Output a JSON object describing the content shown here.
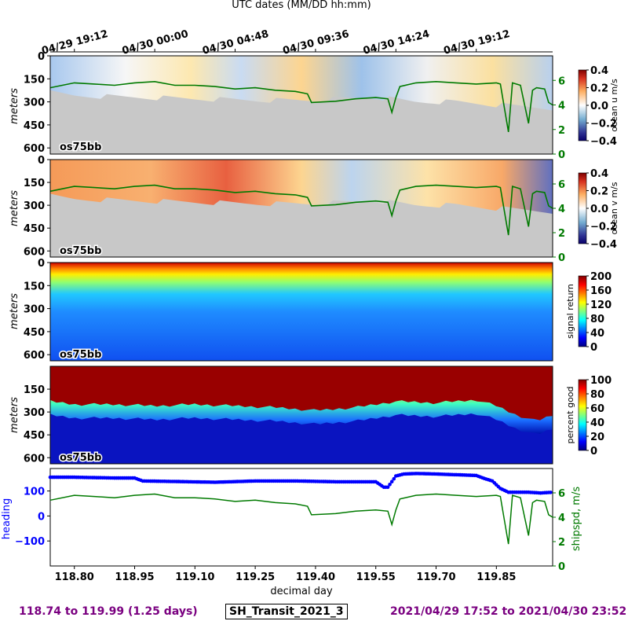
{
  "top_axis_label": "UTC dates (MM/DD hh:mm)",
  "top_ticks": [
    {
      "day": 118.8,
      "label": "04/29 19:12"
    },
    {
      "day": 119.0,
      "label": "04/30 00:00"
    },
    {
      "day": 119.2,
      "label": "04/30 04:48"
    },
    {
      "day": 119.4,
      "label": "04/30 09:36"
    },
    {
      "day": 119.6,
      "label": "04/30 14:24"
    },
    {
      "day": 119.8,
      "label": "04/30 19:12"
    }
  ],
  "footer": {
    "left": "118.74 to 119.99 (1.25 days)",
    "center": "SH_Transit_2021_3",
    "right": "2021/04/29 17:52 to 2021/04/30 23:52"
  },
  "colors": {
    "shipspd": "#007a00",
    "heading": "#0000ff",
    "bad": "#c8c8c8",
    "footer": "#7a0080"
  },
  "chart_data": [
    {
      "type": "heatmap",
      "panel": "ocean_u",
      "instrument": "os75bb",
      "ylabel": "meters",
      "ytick_labels": [
        "0",
        "150",
        "300",
        "450",
        "600"
      ],
      "ylim": [
        0,
        640
      ],
      "y_inverted": true,
      "xlim": [
        118.74,
        119.99
      ],
      "colorbar_label": "ocean u m/s",
      "colorbar_range": [
        -0.4,
        0.4
      ],
      "colorbar_ticks": [
        "0.4",
        "0.2",
        "0.0",
        "−0.2",
        "−0.4"
      ],
      "colormap": "RdYlBu_r",
      "right_axis_ticks": [
        "0",
        "2",
        "4",
        "6"
      ],
      "right_axis_range": [
        0,
        8
      ],
      "valid_depth_m": [
        [
          118.74,
          240
        ],
        [
          118.8,
          260
        ],
        [
          118.95,
          270
        ],
        [
          119.1,
          280
        ],
        [
          119.25,
          290
        ],
        [
          119.4,
          290
        ],
        [
          119.55,
          270
        ],
        [
          119.65,
          300
        ],
        [
          119.75,
          300
        ],
        [
          119.85,
          320
        ],
        [
          119.99,
          340
        ]
      ]
    },
    {
      "type": "heatmap",
      "panel": "ocean_v",
      "instrument": "os75bb",
      "ylabel": "meters",
      "ytick_labels": [
        "0",
        "150",
        "300",
        "450",
        "600"
      ],
      "ylim": [
        0,
        640
      ],
      "y_inverted": true,
      "xlim": [
        118.74,
        119.99
      ],
      "colorbar_label": "ocean v m/s",
      "colorbar_range": [
        -0.4,
        0.4
      ],
      "colorbar_ticks": [
        "0.4",
        "0.2",
        "0.0",
        "−0.2",
        "−0.4"
      ],
      "colormap": "RdYlBu_r",
      "right_axis_ticks": [
        "0",
        "2",
        "4",
        "6"
      ],
      "right_axis_range": [
        0,
        8
      ]
    },
    {
      "type": "heatmap",
      "panel": "signal_return",
      "instrument": "os75bb",
      "ylabel": "meters",
      "ytick_labels": [
        "0",
        "150",
        "300",
        "450",
        "600"
      ],
      "ylim": [
        0,
        640
      ],
      "y_inverted": true,
      "colorbar_label": "signal return",
      "colorbar_range": [
        0,
        200
      ],
      "colorbar_ticks": [
        "200",
        "160",
        "120",
        "80",
        "40",
        "0"
      ],
      "colormap": "jet"
    },
    {
      "type": "heatmap",
      "panel": "percent_good",
      "instrument": "os75bb",
      "ylabel": "meters",
      "ytick_labels": [
        "150",
        "300",
        "450",
        "600"
      ],
      "ylim": [
        0,
        640
      ],
      "y_inverted": true,
      "colorbar_label": "percent good",
      "colorbar_range": [
        0,
        100
      ],
      "colorbar_ticks": [
        "100",
        "80",
        "60",
        "40",
        "20",
        "0"
      ],
      "colormap": "jet",
      "good_depth_m": [
        [
          118.74,
          230
        ],
        [
          118.8,
          250
        ],
        [
          118.9,
          250
        ],
        [
          119.0,
          260
        ],
        [
          119.1,
          250
        ],
        [
          119.2,
          260
        ],
        [
          119.3,
          270
        ],
        [
          119.4,
          290
        ],
        [
          119.5,
          270
        ],
        [
          119.6,
          230
        ],
        [
          119.7,
          240
        ],
        [
          119.8,
          220
        ],
        [
          119.85,
          260
        ],
        [
          119.9,
          320
        ],
        [
          119.95,
          360
        ],
        [
          119.99,
          320
        ]
      ]
    },
    {
      "type": "line",
      "panel": "heading_shipspd",
      "xlabel": "decimal day",
      "x_ticks": [
        "118.80",
        "118.95",
        "119.10",
        "119.25",
        "119.40",
        "119.55",
        "119.70",
        "119.85"
      ],
      "xlim": [
        118.74,
        119.99
      ],
      "ylabel": "heading",
      "y_ticks": [
        "100",
        "0",
        "−100"
      ],
      "ylim": [
        -200,
        190
      ],
      "ylabel_right": "shipspd, m/s",
      "y2_ticks": [
        "6",
        "4",
        "2",
        "0"
      ],
      "y2lim": [
        0,
        8
      ],
      "series": [
        {
          "name": "heading",
          "axis": "left",
          "style": "points",
          "x": [
            118.74,
            118.8,
            118.9,
            118.95,
            118.97,
            119.05,
            119.15,
            119.25,
            119.35,
            119.45,
            119.55,
            119.57,
            119.58,
            119.6,
            119.62,
            119.65,
            119.7,
            119.75,
            119.8,
            119.82,
            119.84,
            119.86,
            119.88,
            119.9,
            119.93,
            119.96,
            119.99
          ],
          "y": [
            155,
            155,
            152,
            152,
            140,
            138,
            135,
            140,
            140,
            137,
            137,
            115,
            115,
            160,
            168,
            170,
            168,
            165,
            162,
            150,
            140,
            110,
            95,
            95,
            95,
            92,
            95
          ]
        },
        {
          "name": "shipspd",
          "axis": "right",
          "style": "line",
          "x": [
            118.74,
            118.8,
            118.85,
            118.9,
            118.95,
            119.0,
            119.05,
            119.1,
            119.15,
            119.2,
            119.25,
            119.3,
            119.35,
            119.38,
            119.39,
            119.45,
            119.5,
            119.55,
            119.58,
            119.59,
            119.6,
            119.61,
            119.65,
            119.7,
            119.75,
            119.8,
            119.85,
            119.86,
            119.88,
            119.89,
            119.91,
            119.93,
            119.94,
            119.95,
            119.97,
            119.98,
            119.99
          ],
          "y": [
            5.4,
            5.8,
            5.7,
            5.6,
            5.8,
            5.9,
            5.6,
            5.6,
            5.5,
            5.3,
            5.4,
            5.2,
            5.1,
            4.9,
            4.2,
            4.3,
            4.5,
            4.6,
            4.5,
            3.4,
            4.6,
            5.5,
            5.8,
            5.9,
            5.8,
            5.7,
            5.8,
            5.7,
            1.8,
            5.8,
            5.6,
            2.5,
            5.2,
            5.4,
            5.3,
            4.2,
            4.0
          ]
        }
      ]
    }
  ]
}
